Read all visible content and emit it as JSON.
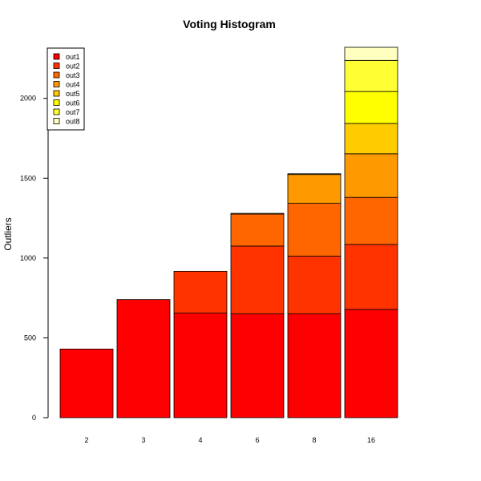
{
  "chart_data": {
    "type": "bar",
    "stacked": true,
    "title": "Voting Histogram",
    "xlabel": "",
    "ylabel": "Outliers",
    "categories": [
      "2",
      "3",
      "4",
      "6",
      "8",
      "16"
    ],
    "ylim": [
      0,
      2320
    ],
    "yticks": [
      0,
      500,
      1000,
      1500,
      2000
    ],
    "legend_position": "top-left",
    "grid": false,
    "series": [
      {
        "name": "out1",
        "color": "#FF0000",
        "values": [
          430,
          740,
          655,
          650,
          650,
          678
        ]
      },
      {
        "name": "out2",
        "color": "#FF3300",
        "values": [
          0,
          0,
          262,
          425,
          362,
          407
        ]
      },
      {
        "name": "out3",
        "color": "#FF6600",
        "values": [
          0,
          0,
          0,
          200,
          331,
          295
        ]
      },
      {
        "name": "out4",
        "color": "#FF9900",
        "values": [
          0,
          0,
          0,
          5,
          180,
          273
        ]
      },
      {
        "name": "out5",
        "color": "#FFCC00",
        "values": [
          0,
          0,
          0,
          0,
          5,
          190
        ]
      },
      {
        "name": "out6",
        "color": "#FFFF00",
        "values": [
          0,
          0,
          0,
          0,
          0,
          200
        ]
      },
      {
        "name": "out7",
        "color": "#FFFF33",
        "values": [
          0,
          0,
          0,
          0,
          0,
          195
        ]
      },
      {
        "name": "out8",
        "color": "#FFFFBF",
        "values": [
          0,
          0,
          0,
          0,
          0,
          82
        ]
      }
    ]
  }
}
